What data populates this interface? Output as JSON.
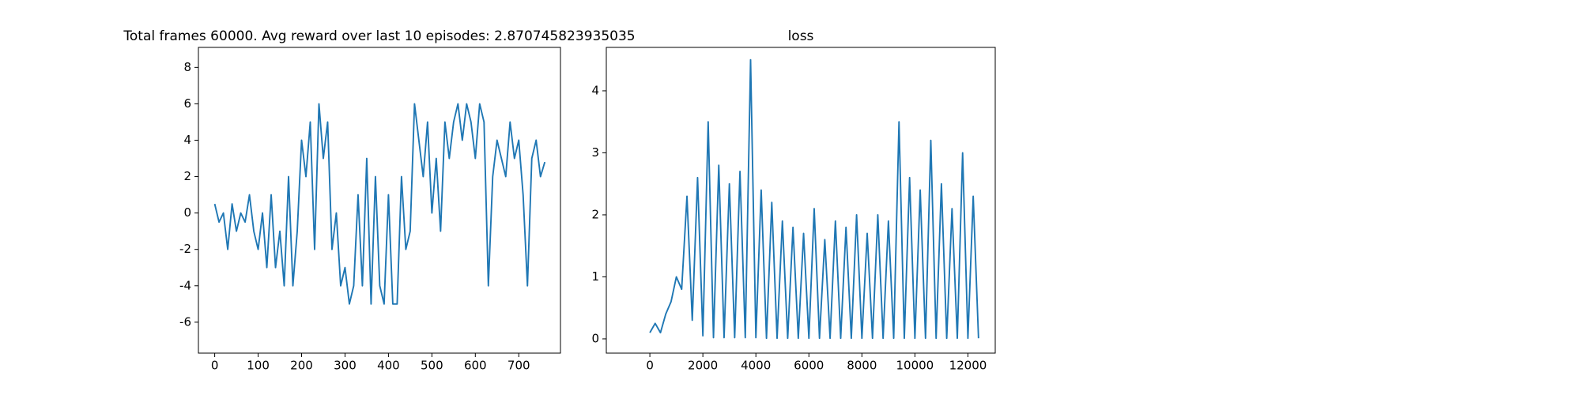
{
  "chart_data": [
    {
      "type": "line",
      "title": "Total frames 60000. Avg reward over last 10 episodes: 2.870745823935035",
      "x": [
        0,
        10,
        20,
        30,
        40,
        50,
        60,
        70,
        80,
        90,
        100,
        110,
        120,
        130,
        140,
        150,
        160,
        170,
        180,
        190,
        200,
        210,
        220,
        230,
        240,
        250,
        260,
        270,
        280,
        290,
        300,
        310,
        320,
        330,
        340,
        350,
        360,
        370,
        380,
        390,
        400,
        410,
        420,
        430,
        440,
        450,
        460,
        470,
        480,
        490,
        500,
        510,
        520,
        530,
        540,
        550,
        560,
        570,
        580,
        590,
        600,
        610,
        620,
        630,
        640,
        650,
        660,
        670,
        680,
        690,
        700,
        710,
        720,
        730,
        740,
        750,
        760
      ],
      "series": [
        {
          "color": "#1f77b4",
          "values": [
            0.5,
            -0.5,
            0,
            -2,
            0.5,
            -1,
            0,
            -0.5,
            1,
            -1,
            -2,
            0,
            -3,
            1,
            -3,
            -1,
            -4,
            2,
            -4,
            -1,
            4,
            2,
            5,
            -2,
            6,
            3,
            5,
            -2,
            0,
            -4,
            -3,
            -5,
            -4,
            1,
            -4,
            3,
            -5,
            2,
            -4,
            -5,
            1,
            -5,
            -5,
            2,
            -2,
            -1,
            6,
            4,
            2,
            5,
            0,
            3,
            -1,
            5,
            3,
            5,
            6,
            4,
            6,
            5,
            3,
            6,
            5,
            -4,
            2,
            4,
            3,
            2,
            5,
            3,
            4,
            1,
            -4,
            3,
            4,
            2,
            2.8
          ]
        }
      ],
      "xlim": [
        -37.5,
        796
      ],
      "ylim": [
        -7.7,
        9.1
      ],
      "xticks": [
        0,
        100,
        200,
        300,
        400,
        500,
        600,
        700
      ],
      "yticks": [
        -6,
        -4,
        -2,
        0,
        2,
        4,
        6,
        8
      ]
    },
    {
      "type": "line",
      "title": "loss",
      "x": [
        0,
        200,
        400,
        600,
        800,
        1000,
        1200,
        1400,
        1600,
        1800,
        2000,
        2200,
        2400,
        2600,
        2800,
        3000,
        3200,
        3400,
        3600,
        3800,
        4000,
        4200,
        4400,
        4600,
        4800,
        5000,
        5200,
        5400,
        5600,
        5800,
        6000,
        6200,
        6400,
        6600,
        6800,
        7000,
        7200,
        7400,
        7600,
        7800,
        8000,
        8200,
        8400,
        8600,
        8800,
        9000,
        9200,
        9400,
        9600,
        9800,
        10000,
        10200,
        10400,
        10600,
        10800,
        11000,
        11200,
        11400,
        11600,
        11800,
        12000,
        12200,
        12400
      ],
      "series": [
        {
          "color": "#1f77b4",
          "values": [
            0.1,
            0.25,
            0.1,
            0.4,
            0.6,
            1.0,
            0.8,
            2.3,
            0.3,
            2.6,
            0.05,
            3.5,
            0.02,
            2.8,
            0.02,
            2.5,
            0.02,
            2.7,
            0.02,
            4.5,
            0.02,
            2.4,
            0.01,
            2.2,
            0.01,
            1.9,
            0.01,
            1.8,
            0.01,
            1.7,
            0.01,
            2.1,
            0.01,
            1.6,
            0.01,
            1.9,
            0.01,
            1.8,
            0.01,
            2.0,
            0.01,
            1.7,
            0.01,
            2.0,
            0.01,
            1.9,
            0.01,
            3.5,
            0.01,
            2.6,
            0.01,
            2.4,
            0.01,
            3.2,
            0.01,
            2.5,
            0.01,
            2.1,
            0.01,
            3.0,
            0.01,
            2.3,
            0.01
          ]
        }
      ],
      "xlim": [
        -1643,
        13031
      ],
      "ylim": [
        -0.23,
        4.7
      ],
      "xticks": [
        0,
        2000,
        4000,
        6000,
        8000,
        10000,
        12000
      ],
      "yticks": [
        0,
        1,
        2,
        3,
        4
      ]
    }
  ]
}
